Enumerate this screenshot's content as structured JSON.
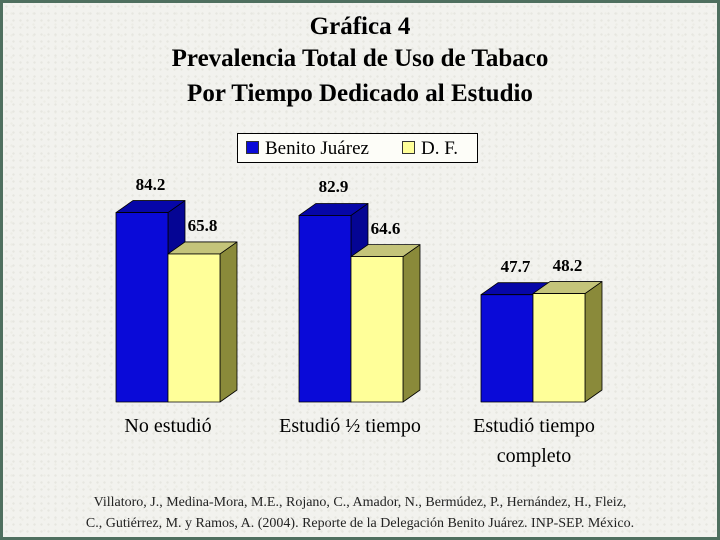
{
  "title_lines": [
    "Gráfica 4",
    "Prevalencia Total de Uso de Tabaco",
    "Por Tiempo Dedicado al Estudio"
  ],
  "colors": {
    "series_a": "#0a0ad8",
    "series_a_side": "#050594",
    "series_a_top": "#0606a8",
    "series_b": "#ffff99",
    "series_b_side": "#8a8a3a",
    "series_b_top": "#c4c47a"
  },
  "chart_data": {
    "type": "bar",
    "categories": [
      "No estudió",
      "Estudió ½ tiempo",
      "Estudió tiempo completo"
    ],
    "category_label_lines": [
      [
        "No estudió"
      ],
      [
        "Estudió ½ tiempo"
      ],
      [
        "Estudió tiempo",
        "completo"
      ]
    ],
    "series": [
      {
        "name": "Benito Juárez",
        "values": [
          84.2,
          82.9,
          47.7
        ],
        "labels": [
          "84.2",
          "82.9",
          "47.7"
        ]
      },
      {
        "name": "D. F.",
        "values": [
          65.8,
          64.6,
          48.2
        ],
        "labels": [
          "65.8",
          "64.6",
          "48.2"
        ]
      }
    ],
    "ylim": [
      0,
      100
    ],
    "legend": "top-center",
    "grid": false,
    "style": "3d"
  },
  "source_lines": [
    "Villatoro, J., Medina-Mora, M.E., Rojano, C., Amador, N., Bermúdez, P., Hernández, H., Fleiz,",
    "C., Gutiérrez, M. y Ramos, A. (2004). Reporte de la Delegación Benito Juárez. INP-SEP. México."
  ]
}
